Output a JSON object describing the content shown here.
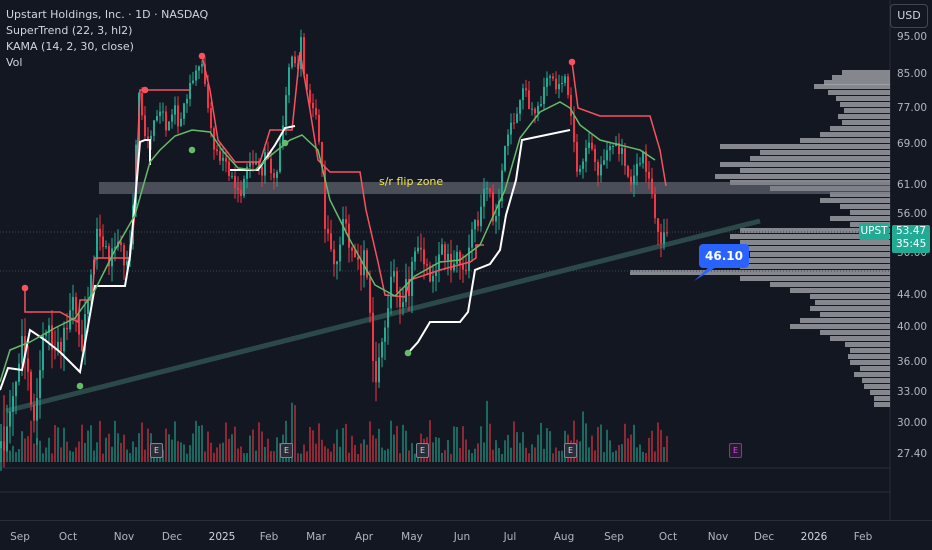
{
  "legend": {
    "symbol_line": "Upstart Holdings, Inc. · 1D · NASDAQ",
    "indicator1": "SuperTrend (22, 3, hl2)",
    "indicator2": "KAMA (14, 2, 30, close)",
    "indicator3": "Vol"
  },
  "currency_button": "USD",
  "ticker_tag": "UPST",
  "last_price": "53.47",
  "countdown": "35:45",
  "callout_value": "46.10",
  "zone_label": "s/r flip zone",
  "colors": {
    "up": "#22ab94",
    "down": "#f23645",
    "supertrend_down": "#f7525f",
    "supertrend_up": "#ffffff",
    "kama": "#66bb6a",
    "trendline": "#2f4f4f",
    "zone": "#787b86",
    "profile": "#a5a7ad",
    "callout": "#2962ff"
  },
  "chart_data": {
    "type": "candlestick",
    "price_ticks": [
      "95.00",
      "85.00",
      "77.00",
      "69.00",
      "61.00",
      "56.00",
      "50.00",
      "44.00",
      "40.00",
      "36.00",
      "33.00",
      "30.00",
      "27.40"
    ],
    "time_ticks": [
      "Sep",
      "Oct",
      "Nov",
      "Dec",
      "2025",
      "Feb",
      "Mar",
      "Apr",
      "May",
      "Jun",
      "Jul",
      "Aug",
      "Sep",
      "Oct",
      "Nov",
      "Dec",
      "2026",
      "Feb"
    ],
    "close_path": [
      [
        0,
        28
      ],
      [
        6,
        30
      ],
      [
        12,
        32
      ],
      [
        16,
        34
      ],
      [
        20,
        40
      ],
      [
        24,
        37
      ],
      [
        28,
        33
      ],
      [
        32,
        30
      ],
      [
        36,
        33
      ],
      [
        40,
        37
      ],
      [
        44,
        39
      ],
      [
        48,
        40
      ],
      [
        52,
        38
      ],
      [
        56,
        38
      ],
      [
        60,
        37
      ],
      [
        64,
        40
      ],
      [
        68,
        42
      ],
      [
        72,
        44
      ],
      [
        76,
        40
      ],
      [
        80,
        37
      ],
      [
        84,
        42
      ],
      [
        88,
        45
      ],
      [
        92,
        47
      ],
      [
        96,
        54
      ],
      [
        100,
        53
      ],
      [
        104,
        51
      ],
      [
        108,
        48
      ],
      [
        112,
        51
      ],
      [
        116,
        53
      ],
      [
        120,
        51
      ],
      [
        124,
        47
      ],
      [
        126,
        48
      ],
      [
        130,
        54
      ],
      [
        134,
        62
      ],
      [
        136,
        77
      ],
      [
        138,
        80
      ],
      [
        142,
        73
      ],
      [
        146,
        70
      ],
      [
        150,
        72
      ],
      [
        154,
        74
      ],
      [
        158,
        76
      ],
      [
        162,
        77
      ],
      [
        166,
        72
      ],
      [
        170,
        75
      ],
      [
        174,
        77
      ],
      [
        178,
        73
      ],
      [
        182,
        78
      ],
      [
        186,
        79
      ],
      [
        190,
        83
      ],
      [
        194,
        86
      ],
      [
        198,
        88
      ],
      [
        202,
        87
      ],
      [
        204,
        82
      ],
      [
        208,
        76
      ],
      [
        212,
        70
      ],
      [
        216,
        67
      ],
      [
        220,
        65
      ],
      [
        224,
        67
      ],
      [
        228,
        64
      ],
      [
        232,
        62
      ],
      [
        236,
        59
      ],
      [
        240,
        60
      ],
      [
        244,
        64
      ],
      [
        248,
        66
      ],
      [
        252,
        64
      ],
      [
        256,
        67
      ],
      [
        260,
        63
      ],
      [
        264,
        67
      ],
      [
        268,
        65
      ],
      [
        272,
        62
      ],
      [
        276,
        65
      ],
      [
        280,
        70
      ],
      [
        284,
        76
      ],
      [
        286,
        83
      ],
      [
        290,
        92
      ],
      [
        294,
        88
      ],
      [
        298,
        86
      ],
      [
        300,
        94
      ],
      [
        302,
        87
      ],
      [
        306,
        82
      ],
      [
        310,
        78
      ],
      [
        314,
        76
      ],
      [
        318,
        70
      ],
      [
        322,
        63
      ],
      [
        324,
        55
      ],
      [
        328,
        52
      ],
      [
        332,
        48
      ],
      [
        336,
        49
      ],
      [
        340,
        54
      ],
      [
        344,
        56
      ],
      [
        348,
        50
      ],
      [
        352,
        51
      ],
      [
        356,
        50
      ],
      [
        360,
        47
      ],
      [
        364,
        50
      ],
      [
        368,
        44
      ],
      [
        372,
        37
      ],
      [
        376,
        33
      ],
      [
        380,
        38
      ],
      [
        384,
        40
      ],
      [
        388,
        45
      ],
      [
        392,
        48
      ],
      [
        396,
        44
      ],
      [
        400,
        42
      ],
      [
        404,
        47
      ],
      [
        408,
        44
      ],
      [
        412,
        49
      ],
      [
        416,
        52
      ],
      [
        420,
        51
      ],
      [
        424,
        48
      ],
      [
        428,
        46
      ],
      [
        432,
        47
      ],
      [
        436,
        49
      ],
      [
        440,
        51
      ],
      [
        444,
        49
      ],
      [
        448,
        50
      ],
      [
        452,
        48
      ],
      [
        456,
        50
      ],
      [
        460,
        47
      ],
      [
        464,
        48
      ],
      [
        468,
        51
      ],
      [
        472,
        55
      ],
      [
        476,
        53
      ],
      [
        480,
        58
      ],
      [
        484,
        62
      ],
      [
        488,
        60
      ],
      [
        492,
        55
      ],
      [
        496,
        56
      ],
      [
        500,
        63
      ],
      [
        504,
        68
      ],
      [
        508,
        72
      ],
      [
        512,
        75
      ],
      [
        516,
        76
      ],
      [
        520,
        80
      ],
      [
        524,
        82
      ],
      [
        528,
        78
      ],
      [
        532,
        77
      ],
      [
        536,
        76
      ],
      [
        540,
        78
      ],
      [
        544,
        84
      ],
      [
        548,
        86
      ],
      [
        552,
        83
      ],
      [
        556,
        81
      ],
      [
        560,
        84
      ],
      [
        564,
        85
      ],
      [
        568,
        78
      ],
      [
        572,
        72
      ],
      [
        574,
        66
      ],
      [
        578,
        64
      ],
      [
        582,
        66
      ],
      [
        586,
        68
      ],
      [
        590,
        70
      ],
      [
        594,
        66
      ],
      [
        598,
        63
      ],
      [
        602,
        65
      ],
      [
        606,
        68
      ],
      [
        610,
        70
      ],
      [
        614,
        69
      ],
      [
        618,
        67
      ],
      [
        622,
        68
      ],
      [
        626,
        64
      ],
      [
        630,
        61
      ],
      [
        634,
        63
      ],
      [
        638,
        66
      ],
      [
        642,
        68
      ],
      [
        646,
        63
      ],
      [
        650,
        60
      ],
      [
        654,
        56
      ],
      [
        658,
        53
      ],
      [
        662,
        52
      ],
      [
        666,
        53
      ]
    ],
    "price_range": [
      27.4,
      96
    ]
  }
}
